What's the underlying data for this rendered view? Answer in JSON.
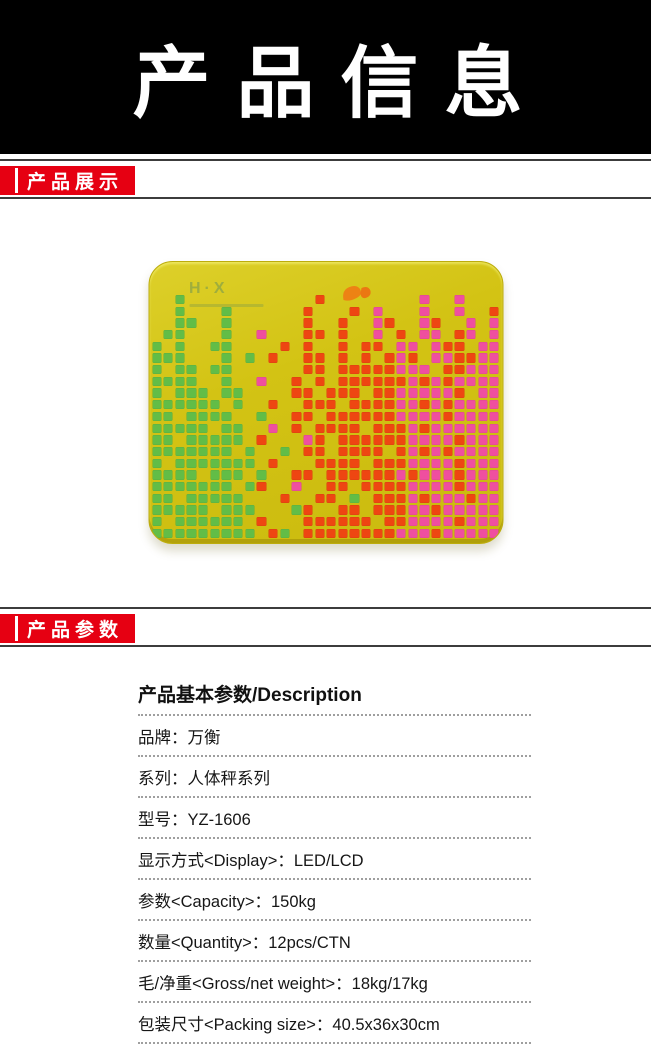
{
  "colors": {
    "red": "#e60012",
    "rule_line": "#3c3c3c",
    "dotted_line": "#9f9f9f"
  },
  "banner": {
    "title": "产品信息"
  },
  "sections": {
    "display": {
      "label": "产品展示"
    },
    "params": {
      "label": "产品参数"
    }
  },
  "scale": {
    "brand_text": "H·X",
    "mosaic": {
      "colors": {
        "g": "#62bd47",
        "o": "#ee4612",
        "p": "#ef4f9f"
      },
      "rows": [
        "..g...........o........p..p...",
        "..g...g......o...o.p...p..p..o",
        "..gg..g......o..o..po..po..p.p",
        ".gg...g..p...oo.o..p.o.pp.op.p",
        "g.g..gg....o.o..o.oo.pp.poo.pp",
        "ggg...g.g.o..oo.o.o.opo.ppoopp",
        "g.gg.gg......oo.oooooppp.ooppp",
        "gggg..g..p..o.o.oooooopopopppp",
        "g.ggg.gg....oo.ooo.oopppppo.pp",
        "gggggg.g..o..ooo.ooooppopopppp",
        "gg.gggg..g..oo.ooooooppppopppp",
        "ggggg.gg..p.o.oooo.ooopopppppp",
        "gg.ggggg.o...po.ooooooppppoppp",
        "ggggggg.g..g.oo.oooo.opopopppp",
        "g.ggggggg.o...oooo.oooppppoppp",
        "gggg.ggg.g..oo.oooooopopppoppp",
        "ggggggg.go..p..oo.ooooppppoppp",
        "gg.ggggg...o..oo.g.ooopopppopp",
        "ggggg.ggg...go..oo.oooppoppppp",
        "g.gggggg.o...oooooo.ooppppoppp",
        "ggggggggg.og.oooooooopppoppppp"
      ]
    }
  },
  "spec_table": {
    "header": "产品基本参数/Description",
    "rows": [
      "品牌：万衡",
      "系列：人体秤系列",
      "型号：YZ-1606",
      "显示方式<Display>：LED/LCD",
      "参数<Capacity>：150kg",
      "数量<Quantity>：12pcs/CTN",
      "毛/净重<Gross/net weight>：18kg/17kg",
      "包装尺寸<Packing size>：40.5x36x30cm"
    ]
  }
}
